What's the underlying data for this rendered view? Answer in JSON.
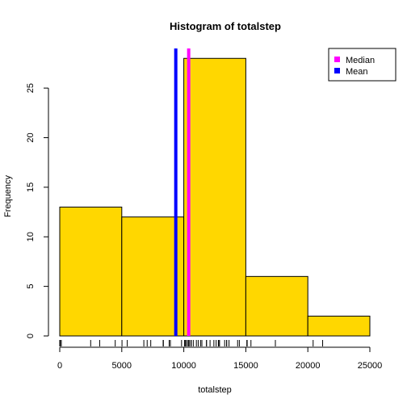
{
  "chart_data": {
    "type": "bar",
    "title": "Histogram of totalstep",
    "xlabel": "totalstep",
    "ylabel": "Frequency",
    "bins": [
      {
        "start": 0,
        "end": 5000,
        "count": 13
      },
      {
        "start": 5000,
        "end": 10000,
        "count": 12
      },
      {
        "start": 10000,
        "end": 15000,
        "count": 28
      },
      {
        "start": 15000,
        "end": 20000,
        "count": 6
      },
      {
        "start": 20000,
        "end": 25000,
        "count": 2
      }
    ],
    "xlim": [
      0,
      25000
    ],
    "ylim": [
      0,
      29
    ],
    "xticks": [
      0,
      5000,
      10000,
      15000,
      20000,
      25000
    ],
    "yticks": [
      0,
      5,
      10,
      15,
      20,
      25
    ],
    "bar_color": "#FFD700",
    "rug": [
      0,
      41,
      126,
      2492,
      3219,
      4472,
      5018,
      5441,
      6778,
      7047,
      7336,
      8334,
      8355,
      8821,
      8918,
      9819,
      10056,
      10139,
      10183,
      10304,
      10395,
      10439,
      10571,
      10600,
      10765,
      11015,
      11162,
      11352,
      11458,
      11829,
      11834,
      12116,
      12426,
      12608,
      12787,
      12811,
      12883,
      13294,
      13452,
      13460,
      13646,
      14339,
      14478,
      15084,
      15098,
      15110,
      15414,
      17382,
      20427,
      21194
    ],
    "lines": [
      {
        "name": "Median",
        "value": 10395,
        "color": "#FF00FF"
      },
      {
        "name": "Mean",
        "value": 9354,
        "color": "#0000FF"
      }
    ],
    "legend_position": "top-right"
  }
}
